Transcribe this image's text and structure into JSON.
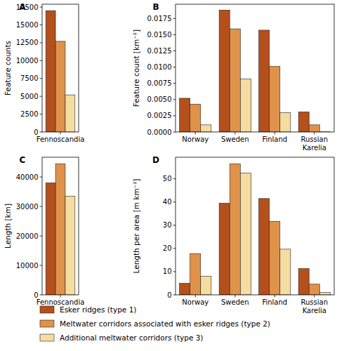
{
  "chart_data": [
    {
      "type": "bar",
      "title": "A",
      "y_label": "Feature counts",
      "categories": [
        "Fennoscandia"
      ],
      "series": [
        {
          "name": "Esker ridges (type 1)",
          "color": "#b5501c",
          "values": [
            17000
          ]
        },
        {
          "name": "Meltwater corridors associated with esker ridges (type 2)",
          "color": "#e0924a",
          "values": [
            12700
          ]
        },
        {
          "name": "Additional meltwater corridors (type 3)",
          "color": "#f5dca0",
          "values": [
            5200
          ]
        }
      ],
      "ylim": [
        0,
        17900
      ],
      "yticks": [
        0,
        2500,
        5000,
        7500,
        10000,
        12500,
        15000,
        17500
      ],
      "legend": "bottom"
    },
    {
      "type": "bar",
      "title": "B",
      "y_label": "Feature count [km⁻²]",
      "categories": [
        "Norway",
        "Sweden",
        "Finland",
        "Russian\nKarelia"
      ],
      "series": [
        {
          "color": "#b5501c",
          "values": [
            0.0052,
            0.0188,
            0.0157,
            0.0031
          ]
        },
        {
          "color": "#e0924a",
          "values": [
            0.0043,
            0.0159,
            0.0101,
            0.0011
          ]
        },
        {
          "color": "#f5dca0",
          "values": [
            0.0011,
            0.0082,
            0.003,
            3e-05
          ]
        }
      ],
      "ylim": [
        0,
        0.0197
      ],
      "yticks": [
        {
          "value": 0,
          "label": "0.0000"
        },
        {
          "value": 0.0025,
          "label": "0.0025"
        },
        {
          "value": 0.005,
          "label": "0.0050"
        },
        {
          "value": 0.0075,
          "label": "0.0075"
        },
        {
          "value": 0.01,
          "label": "0.0100"
        },
        {
          "value": 0.0125,
          "label": "0.0125"
        },
        {
          "value": 0.015,
          "label": "0.0150"
        },
        {
          "value": 0.0175,
          "label": "0.0175"
        }
      ]
    },
    {
      "type": "bar",
      "title": "C",
      "y_label": "Length [km]",
      "categories": [
        "Fennoscandia"
      ],
      "series": [
        {
          "color": "#b5501c",
          "values": [
            38000
          ]
        },
        {
          "color": "#e0924a",
          "values": [
            44500
          ]
        },
        {
          "color": "#f5dca0",
          "values": [
            33500
          ]
        }
      ],
      "ylim": [
        0,
        46700
      ],
      "yticks": [
        0,
        10000,
        20000,
        30000,
        40000
      ]
    },
    {
      "type": "bar",
      "title": "D",
      "y_label": "Length per area [m km⁻²]",
      "categories": [
        "Norway",
        "Sweden",
        "Finland",
        "Russian\nKarelia"
      ],
      "series": [
        {
          "color": "#b5501c",
          "values": [
            5,
            39.5,
            41.5,
            11.3
          ]
        },
        {
          "color": "#e0924a",
          "values": [
            17.8,
            56.5,
            31.7,
            4.6
          ]
        },
        {
          "color": "#f5dca0",
          "values": [
            8,
            52.5,
            19.7,
            1
          ]
        }
      ],
      "ylim": [
        0,
        59.3
      ],
      "yticks": [
        0,
        10,
        20,
        30,
        40,
        50
      ]
    }
  ]
}
